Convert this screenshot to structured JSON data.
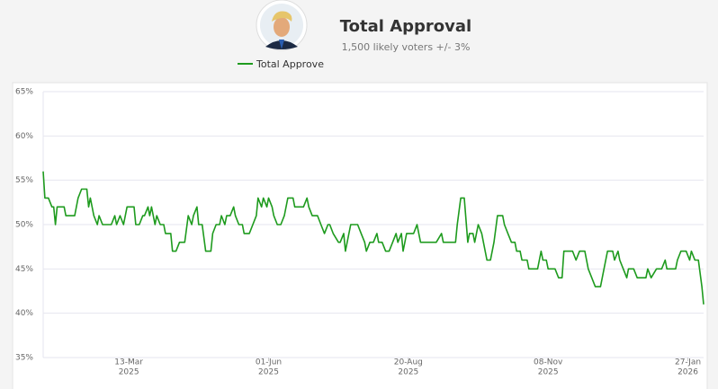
{
  "chart_data": {
    "type": "line",
    "title": "Total Approval",
    "subtitle": "1,500 likely voters +/- 3%",
    "legend": "top",
    "grid": true,
    "ylim": [
      35,
      65
    ],
    "yticks": [
      {
        "value": 35,
        "label": "35%"
      },
      {
        "value": 40,
        "label": "40%"
      },
      {
        "value": 45,
        "label": "45%"
      },
      {
        "value": 50,
        "label": "50%"
      },
      {
        "value": 55,
        "label": "55%"
      },
      {
        "value": 60,
        "label": "60%"
      },
      {
        "value": 65,
        "label": "65%"
      }
    ],
    "xlim": [
      "2025-01-23",
      "2026-02-05"
    ],
    "xticks": [
      {
        "value": "2025-03-13",
        "label": "13-Mar",
        "year": "2025"
      },
      {
        "value": "2025-06-01",
        "label": "01-Jun",
        "year": "2025"
      },
      {
        "value": "2025-08-20",
        "label": "20-Aug",
        "year": "2025"
      },
      {
        "value": "2025-11-08",
        "label": "08-Nov",
        "year": "2025"
      },
      {
        "value": "2026-01-27",
        "label": "27-Jan",
        "year": "2026"
      }
    ],
    "x": [
      "2025-01-23",
      "2025-01-24",
      "2025-01-26",
      "2025-01-28",
      "2025-01-29",
      "2025-01-30",
      "2025-01-31",
      "2025-02-04",
      "2025-02-05",
      "2025-02-10",
      "2025-02-12",
      "2025-02-14",
      "2025-02-17",
      "2025-02-18",
      "2025-02-19",
      "2025-02-21",
      "2025-02-23",
      "2025-02-24",
      "2025-02-26",
      "2025-03-03",
      "2025-03-05",
      "2025-03-06",
      "2025-03-08",
      "2025-03-10",
      "2025-03-12",
      "2025-03-16",
      "2025-03-17",
      "2025-03-19",
      "2025-03-21",
      "2025-03-22",
      "2025-03-24",
      "2025-03-25",
      "2025-03-26",
      "2025-03-28",
      "2025-03-29",
      "2025-03-31",
      "2025-04-02",
      "2025-04-03",
      "2025-04-06",
      "2025-04-07",
      "2025-04-09",
      "2025-04-11",
      "2025-04-14",
      "2025-04-16",
      "2025-04-18",
      "2025-04-19",
      "2025-04-21",
      "2025-04-22",
      "2025-04-24",
      "2025-04-26",
      "2025-04-29",
      "2025-04-30",
      "2025-05-02",
      "2025-05-04",
      "2025-05-05",
      "2025-05-07",
      "2025-05-08",
      "2025-05-10",
      "2025-05-12",
      "2025-05-13",
      "2025-05-15",
      "2025-05-17",
      "2025-05-18",
      "2025-05-21",
      "2025-05-23",
      "2025-05-25",
      "2025-05-26",
      "2025-05-28",
      "2025-05-29",
      "2025-05-31",
      "2025-06-01",
      "2025-06-03",
      "2025-06-04",
      "2025-06-06",
      "2025-06-08",
      "2025-06-10",
      "2025-06-12",
      "2025-06-15",
      "2025-06-16",
      "2025-06-21",
      "2025-06-23",
      "2025-06-24",
      "2025-06-26",
      "2025-06-29",
      "2025-07-01",
      "2025-07-03",
      "2025-07-05",
      "2025-07-06",
      "2025-07-08",
      "2025-07-11",
      "2025-07-12",
      "2025-07-14",
      "2025-07-15",
      "2025-07-17",
      "2025-07-18",
      "2025-07-22",
      "2025-07-24",
      "2025-07-26",
      "2025-07-27",
      "2025-07-29",
      "2025-07-31",
      "2025-08-02",
      "2025-08-03",
      "2025-08-05",
      "2025-08-07",
      "2025-08-09",
      "2025-08-11",
      "2025-08-13",
      "2025-08-14",
      "2025-08-16",
      "2025-08-17",
      "2025-08-19",
      "2025-08-23",
      "2025-08-25",
      "2025-08-27",
      "2025-09-05",
      "2025-09-08",
      "2025-09-09",
      "2025-09-16",
      "2025-09-17",
      "2025-09-19",
      "2025-09-21",
      "2025-09-23",
      "2025-09-24",
      "2025-09-26",
      "2025-09-27",
      "2025-09-29",
      "2025-10-01",
      "2025-10-02",
      "2025-10-04",
      "2025-10-06",
      "2025-10-08",
      "2025-10-10",
      "2025-10-13",
      "2025-10-14",
      "2025-10-16",
      "2025-10-18",
      "2025-10-20",
      "2025-10-21",
      "2025-10-23",
      "2025-10-24",
      "2025-10-27",
      "2025-10-28",
      "2025-11-02",
      "2025-11-04",
      "2025-11-05",
      "2025-11-07",
      "2025-11-08",
      "2025-11-12",
      "2025-11-14",
      "2025-11-16",
      "2025-11-17",
      "2025-11-22",
      "2025-11-24",
      "2025-11-26",
      "2025-11-29",
      "2025-12-01",
      "2025-12-03",
      "2025-12-05",
      "2025-12-08",
      "2025-12-10",
      "2025-12-12",
      "2025-12-15",
      "2025-12-16",
      "2025-12-18",
      "2025-12-19",
      "2025-12-21",
      "2025-12-23",
      "2025-12-24",
      "2025-12-27",
      "2025-12-29",
      "2026-01-03",
      "2026-01-04",
      "2026-01-06",
      "2026-01-09",
      "2026-01-12",
      "2026-01-14",
      "2026-01-15",
      "2026-01-20",
      "2026-01-21",
      "2026-01-23",
      "2026-01-26",
      "2026-01-28",
      "2026-01-29",
      "2026-01-31",
      "2026-02-02",
      "2026-02-04",
      "2026-02-05"
    ],
    "series": [
      {
        "name": "Total Approve",
        "color": "#1e9b1e",
        "values": [
          56,
          53,
          53,
          52,
          52,
          50,
          52,
          52,
          51,
          51,
          53,
          54,
          54,
          52,
          53,
          51,
          50,
          51,
          50,
          50,
          51,
          50,
          51,
          50,
          52,
          52,
          50,
          50,
          51,
          51,
          52,
          51,
          52,
          50,
          51,
          50,
          50,
          49,
          49,
          47,
          47,
          48,
          48,
          51,
          50,
          51,
          52,
          50,
          50,
          47,
          47,
          49,
          50,
          50,
          51,
          50,
          51,
          51,
          52,
          51,
          50,
          50,
          49,
          49,
          50,
          51,
          53,
          52,
          53,
          52,
          53,
          52,
          51,
          50,
          50,
          51,
          53,
          53,
          52,
          52,
          53,
          52,
          51,
          51,
          50,
          49,
          50,
          50,
          49,
          48,
          48,
          49,
          47,
          49,
          50,
          50,
          49,
          48,
          47,
          48,
          48,
          49,
          48,
          48,
          47,
          47,
          48,
          49,
          48,
          49,
          47,
          49,
          49,
          50,
          48,
          48,
          49,
          48,
          48,
          50,
          53,
          53,
          48,
          49,
          49,
          48,
          50,
          49,
          48,
          46,
          46,
          48,
          51,
          51,
          50,
          49,
          48,
          48,
          47,
          47,
          46,
          46,
          45,
          45,
          47,
          46,
          46,
          45,
          45,
          44,
          44,
          47,
          47,
          46,
          47,
          47,
          45,
          44,
          43,
          43,
          45,
          47,
          47,
          46,
          47,
          46,
          45,
          44,
          45,
          45,
          44,
          44,
          45,
          44,
          45,
          45,
          46,
          45,
          45,
          46,
          47,
          47,
          46,
          47,
          46,
          46,
          43,
          41
        ]
      }
    ]
  }
}
